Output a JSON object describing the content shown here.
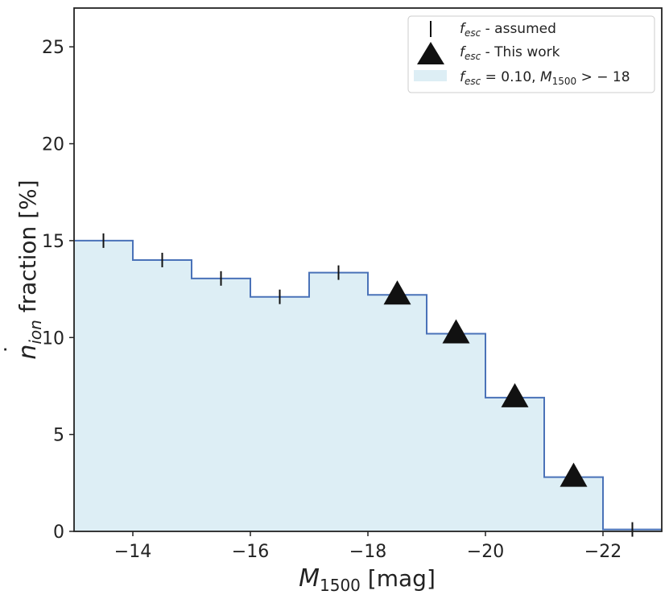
{
  "chart_data": {
    "type": "step",
    "xlabel_var": "M",
    "xlabel_sub": "1500",
    "xlabel_unit": " [mag]",
    "ylabel_var": "n",
    "ylabel_dot": "˙",
    "ylabel_sub": "ion",
    "ylabel_rest": " fraction [%]",
    "xlim": [
      -13,
      -23
    ],
    "ylim": [
      0,
      27
    ],
    "xticks": [
      -14,
      -16,
      -18,
      -20,
      -22
    ],
    "xtick_labels": [
      "−14",
      "−16",
      "−18",
      "−20",
      "−22"
    ],
    "yticks": [
      0,
      5,
      10,
      15,
      20,
      25
    ],
    "ytick_labels": [
      "0",
      "5",
      "10",
      "15",
      "20",
      "25"
    ],
    "bin_edges": [
      -13,
      -14,
      -15,
      -16,
      -17,
      -18,
      -19,
      -20,
      -21,
      -22,
      -23
    ],
    "bin_values": [
      15.0,
      14.0,
      13.05,
      12.1,
      13.35,
      12.2,
      10.2,
      6.9,
      2.8,
      0.1
    ],
    "assumed": {
      "x": [
        -13.5,
        -14.5,
        -15.5,
        -16.5,
        -17.5,
        -22.5
      ],
      "y": [
        15.0,
        14.0,
        13.05,
        12.1,
        13.35,
        0.1
      ]
    },
    "this_work": {
      "x": [
        -18.5,
        -19.5,
        -20.5,
        -21.5
      ],
      "y": [
        12.2,
        10.2,
        6.9,
        2.8
      ]
    },
    "legend": {
      "position": "top-right",
      "entries": [
        {
          "var": "f",
          "sub": "esc",
          "rest": " - assumed"
        },
        {
          "var": "f",
          "sub": "esc",
          "rest": " - This work"
        },
        {
          "var": "f",
          "sub": "esc",
          "rest": " = 0.10, ",
          "var2": "M",
          "sub2": "1500",
          "rest2": " > − 18"
        }
      ]
    },
    "colors": {
      "fill": "#ddeef5",
      "step_line": "#4a72b8",
      "marker": "#111111",
      "axes": "#222222"
    }
  }
}
